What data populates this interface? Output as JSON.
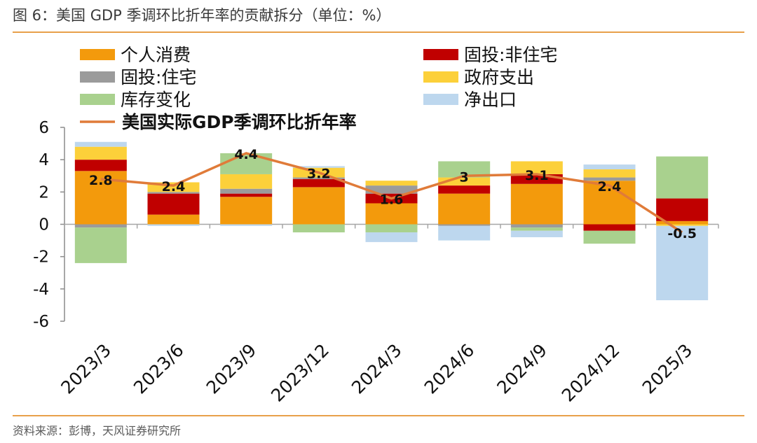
{
  "figure": {
    "title": "图 6：美国 GDP 季调环比折年率的贡献拆分（单位：%）",
    "source": "资料来源：彭博，天风证券研究所"
  },
  "chart_data": {
    "type": "bar",
    "stacked": true,
    "categories": [
      "2023/3",
      "2023/6",
      "2023/9",
      "2023/12",
      "2024/3",
      "2024/6",
      "2024/9",
      "2024/12",
      "2025/3"
    ],
    "ylim": [
      -6,
      6
    ],
    "yticks": [
      6,
      4,
      2,
      0,
      -2,
      -4,
      -6
    ],
    "series": [
      {
        "name": "个人消费",
        "color": "#f39a0c",
        "values": [
          3.3,
          0.6,
          1.7,
          2.3,
          1.3,
          1.9,
          2.5,
          2.7,
          0.2
        ]
      },
      {
        "name": "固投:非住宅",
        "color": "#c00000",
        "values": [
          0.7,
          1.3,
          0.2,
          0.5,
          0.6,
          0.5,
          0.6,
          -0.4,
          1.4
        ]
      },
      {
        "name": "固投:住宅",
        "color": "#9b9b9b",
        "values": [
          -0.2,
          0.1,
          0.3,
          0.1,
          0.5,
          -0.1,
          -0.2,
          0.2,
          0.0
        ]
      },
      {
        "name": "政府支出",
        "color": "#fcd03a",
        "values": [
          0.8,
          0.6,
          0.9,
          0.6,
          0.3,
          0.5,
          0.8,
          0.5,
          -0.1
        ]
      },
      {
        "name": "库存变化",
        "color": "#a9d18e",
        "values": [
          -2.2,
          0.0,
          1.3,
          -0.5,
          -0.5,
          1.0,
          -0.2,
          -0.8,
          2.6
        ]
      },
      {
        "name": "净出口",
        "color": "#bdd7ee",
        "values": [
          0.3,
          -0.1,
          -0.1,
          0.1,
          -0.6,
          -0.9,
          -0.4,
          0.3,
          -4.6
        ]
      }
    ],
    "line": {
      "name": "美国实际GDP季调环比折年率",
      "color": "#e07b39",
      "values": [
        2.8,
        2.4,
        4.4,
        3.2,
        1.6,
        3,
        3.1,
        2.4,
        -0.5
      ],
      "labels": [
        "2.8",
        "2.4",
        "4.4",
        "3.2",
        "1.6",
        "3",
        "3.1",
        "2.4",
        "-0.5"
      ]
    },
    "legend_position": "top"
  }
}
